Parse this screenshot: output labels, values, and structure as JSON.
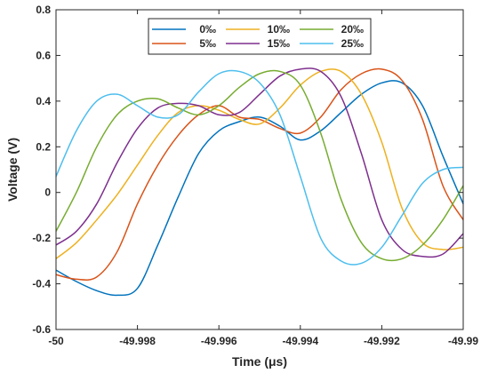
{
  "chart_data": {
    "type": "line",
    "title": "",
    "xlabel": "Time (μs)",
    "ylabel": "Voltage (V)",
    "xlim": [
      -50,
      -49.99
    ],
    "ylim": [
      -0.6,
      0.8
    ],
    "xticks": [
      "-50",
      "-49.998",
      "-49.996",
      "-49.994",
      "-49.992",
      "-49.99"
    ],
    "yticks": [
      "-0.6",
      "-0.4",
      "-0.2",
      "0",
      "0.2",
      "0.4",
      "0.6",
      "0.8"
    ],
    "grid": false,
    "legend_position": "top-center",
    "series": [
      {
        "name": "0‰",
        "color": "#0072BD",
        "x": [
          -50.0,
          -49.9995,
          -49.999,
          -49.9985,
          -49.998,
          -49.9975,
          -49.997,
          -49.9965,
          -49.996,
          -49.9955,
          -49.995,
          -49.9945,
          -49.994,
          -49.9935,
          -49.993,
          -49.9925,
          -49.992,
          -49.9915,
          -49.991,
          -49.9905,
          -49.99
        ],
        "y": [
          -0.34,
          -0.39,
          -0.43,
          -0.45,
          -0.42,
          -0.23,
          -0.02,
          0.17,
          0.27,
          0.31,
          0.33,
          0.29,
          0.23,
          0.27,
          0.35,
          0.43,
          0.48,
          0.48,
          0.38,
          0.16,
          -0.05
        ]
      },
      {
        "name": "5‰",
        "color": "#D95319",
        "x": [
          -50.0,
          -49.9995,
          -49.999,
          -49.9985,
          -49.998,
          -49.9975,
          -49.997,
          -49.9965,
          -49.996,
          -49.9955,
          -49.995,
          -49.9945,
          -49.994,
          -49.9935,
          -49.993,
          -49.9925,
          -49.992,
          -49.9915,
          -49.991,
          -49.9905,
          -49.99
        ],
        "y": [
          -0.36,
          -0.38,
          -0.37,
          -0.26,
          -0.05,
          0.12,
          0.25,
          0.34,
          0.38,
          0.33,
          0.32,
          0.28,
          0.26,
          0.33,
          0.45,
          0.52,
          0.54,
          0.49,
          0.32,
          0.03,
          -0.12
        ]
      },
      {
        "name": "10‰",
        "color": "#EDB120",
        "x": [
          -50.0,
          -49.9995,
          -49.999,
          -49.9985,
          -49.998,
          -49.9975,
          -49.997,
          -49.9965,
          -49.996,
          -49.9955,
          -49.995,
          -49.9945,
          -49.994,
          -49.9935,
          -49.993,
          -49.9925,
          -49.992,
          -49.9915,
          -49.991,
          -49.9905,
          -49.99
        ],
        "y": [
          -0.29,
          -0.22,
          -0.12,
          -0.01,
          0.12,
          0.25,
          0.35,
          0.38,
          0.36,
          0.32,
          0.3,
          0.37,
          0.47,
          0.53,
          0.53,
          0.43,
          0.22,
          -0.07,
          -0.22,
          -0.25,
          -0.24
        ]
      },
      {
        "name": "15‰",
        "color": "#7E2F8E",
        "x": [
          -50.0,
          -49.9995,
          -49.999,
          -49.9985,
          -49.998,
          -49.9975,
          -49.997,
          -49.9965,
          -49.996,
          -49.9955,
          -49.995,
          -49.9945,
          -49.994,
          -49.9935,
          -49.993,
          -49.9925,
          -49.992,
          -49.9915,
          -49.991,
          -49.9905,
          -49.99
        ],
        "y": [
          -0.23,
          -0.17,
          -0.05,
          0.13,
          0.28,
          0.37,
          0.39,
          0.38,
          0.34,
          0.35,
          0.43,
          0.51,
          0.54,
          0.53,
          0.42,
          0.17,
          -0.12,
          -0.25,
          -0.28,
          -0.27,
          -0.18
        ]
      },
      {
        "name": "20‰",
        "color": "#77AC30",
        "x": [
          -50.0,
          -49.9995,
          -49.999,
          -49.9985,
          -49.998,
          -49.9975,
          -49.997,
          -49.9965,
          -49.996,
          -49.9955,
          -49.995,
          -49.9945,
          -49.994,
          -49.9935,
          -49.993,
          -49.9925,
          -49.992,
          -49.9915,
          -49.991,
          -49.9905,
          -49.99
        ],
        "y": [
          -0.17,
          0.0,
          0.2,
          0.34,
          0.4,
          0.41,
          0.37,
          0.34,
          0.38,
          0.46,
          0.52,
          0.53,
          0.47,
          0.26,
          -0.03,
          -0.22,
          -0.29,
          -0.29,
          -0.23,
          -0.12,
          0.03
        ]
      },
      {
        "name": "25‰",
        "color": "#4DBEEE",
        "x": [
          -50.0,
          -49.9995,
          -49.999,
          -49.9985,
          -49.998,
          -49.9975,
          -49.997,
          -49.9965,
          -49.996,
          -49.9955,
          -49.995,
          -49.9945,
          -49.994,
          -49.9935,
          -49.993,
          -49.9925,
          -49.992,
          -49.9915,
          -49.991,
          -49.9905,
          -49.99
        ],
        "y": [
          0.07,
          0.27,
          0.4,
          0.43,
          0.38,
          0.33,
          0.34,
          0.44,
          0.52,
          0.53,
          0.48,
          0.34,
          0.07,
          -0.2,
          -0.3,
          -0.31,
          -0.24,
          -0.1,
          0.04,
          0.1,
          0.11
        ]
      }
    ]
  }
}
